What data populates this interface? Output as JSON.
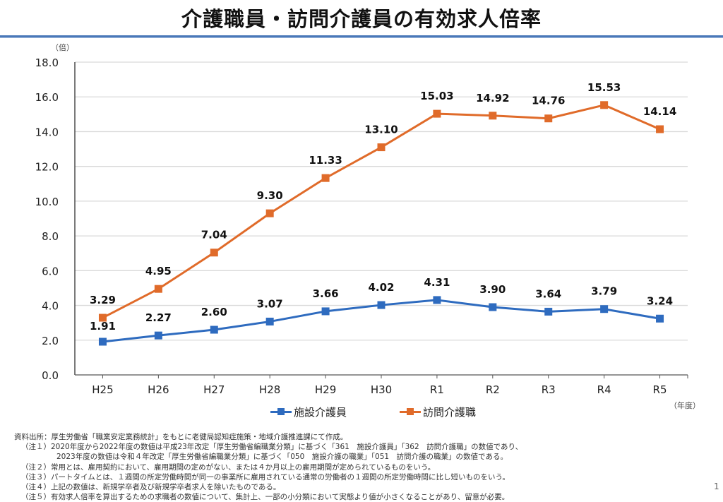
{
  "page": {
    "title": "介護職員・訪問介護員の有効求人倍率",
    "page_number": "1",
    "colors": {
      "title_rule": "#4a78b8",
      "grid": "#d9d9d9",
      "axis": "#222222"
    }
  },
  "notes": {
    "source": "資料出所：厚生労働省「職業安定業務統計」をもとに老健局認知症施策・地域介護推進課にて作成。",
    "items": [
      {
        "label": "（注１）",
        "text": "2020年度から2022年度の数値は平成23年改定「厚生労働省編職業分類」に基づく「361　施設介護員」「362　訪問介護職」の数値であり、"
      },
      {
        "label": "",
        "text": "2023年度の数値は令和４年改定「厚生労働省編職業分類」に基づく「050　施設介護の職業」「051　訪問介護の職業」の数値である。"
      },
      {
        "label": "（注２）",
        "text": "常用とは、雇用契約において、雇用期間の定めがない、または４か月以上の雇用期間が定められているものをいう。"
      },
      {
        "label": "（注３）",
        "text": "パートタイムとは、１週間の所定労働時間が同一の事業所に雇用されている通常の労働者の１週間の所定労働時間に比し短いものをいう。"
      },
      {
        "label": "（注４）",
        "text": "上記の数値は、新規学卒者及び新規学卒者求人を除いたものである。"
      },
      {
        "label": "（注５）",
        "text": "有効求人倍率を算出するための求職者の数値について、集計上、一部の小分類において実態より値が小さくなることがあり、留意が必要。"
      }
    ]
  },
  "chart_data": {
    "type": "line",
    "title": "介護職員・訪問介護員の有効求人倍率",
    "xlabel": "（年度）",
    "ylabel": "（倍）",
    "categories": [
      "H25",
      "H26",
      "H27",
      "H28",
      "H29",
      "H30",
      "R1",
      "R2",
      "R3",
      "R4",
      "R5"
    ],
    "ylim": [
      0,
      18
    ],
    "yticks": [
      "0.0",
      "2.0",
      "4.0",
      "6.0",
      "8.0",
      "10.0",
      "12.0",
      "14.0",
      "16.0",
      "18.0"
    ],
    "ytick_values": [
      0,
      2,
      4,
      6,
      8,
      10,
      12,
      14,
      16,
      18
    ],
    "grid": true,
    "legend_position": "bottom",
    "series": [
      {
        "name": "施設介護員",
        "color": "#2e6bbf",
        "marker": "square",
        "values": [
          1.91,
          2.27,
          2.6,
          3.07,
          3.66,
          4.02,
          4.31,
          3.9,
          3.64,
          3.79,
          3.24
        ],
        "labels": [
          "1.91",
          "2.27",
          "2.60",
          "3.07",
          "3.66",
          "4.02",
          "4.31",
          "3.90",
          "3.64",
          "3.79",
          "3.24"
        ]
      },
      {
        "name": "訪問介護職",
        "color": "#e06b2a",
        "marker": "square",
        "values": [
          3.29,
          4.95,
          7.04,
          9.3,
          11.33,
          13.1,
          15.03,
          14.92,
          14.76,
          15.53,
          14.14
        ],
        "labels": [
          "3.29",
          "4.95",
          "7.04",
          "9.30",
          "11.33",
          "13.10",
          "15.03",
          "14.92",
          "14.76",
          "15.53",
          "14.14"
        ]
      }
    ]
  }
}
